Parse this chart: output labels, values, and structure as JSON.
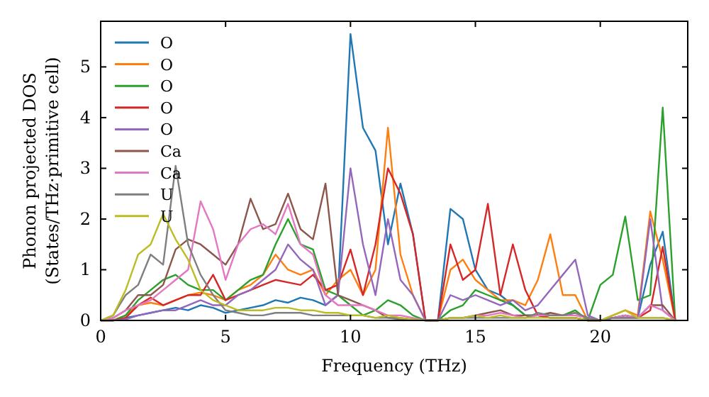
{
  "chart_data": {
    "type": "line",
    "xlabel": "Frequency (THz)",
    "ylabel": "Phonon projected DOS\n(States/THz·primitive cell)",
    "xlim": [
      0,
      23.5
    ],
    "ylim": [
      0,
      5.9
    ],
    "xticks": [
      0,
      5,
      10,
      15,
      20
    ],
    "yticks": [
      0,
      1,
      2,
      3,
      4,
      5
    ],
    "grid": false,
    "legend": "top left",
    "line_style": "solid",
    "marker": "none",
    "x": [
      0,
      0.5,
      1,
      1.5,
      2,
      2.5,
      3,
      3.5,
      4,
      4.5,
      5,
      5.5,
      6,
      6.5,
      7,
      7.5,
      8,
      8.5,
      9,
      9.5,
      10,
      10.5,
      11,
      11.5,
      12,
      12.5,
      13,
      13.5,
      14,
      14.5,
      15,
      15.5,
      16,
      16.5,
      17,
      17.5,
      18,
      18.5,
      19,
      19.5,
      20,
      20.5,
      21,
      21.5,
      22,
      22.5,
      23
    ],
    "series": [
      {
        "name": "O",
        "color": "#1f77b4",
        "values": [
          0,
          0,
          0.05,
          0.1,
          0.15,
          0.2,
          0.25,
          0.2,
          0.3,
          0.25,
          0.15,
          0.2,
          0.25,
          0.3,
          0.4,
          0.35,
          0.45,
          0.4,
          0.3,
          0.5,
          5.65,
          3.8,
          3.35,
          1.5,
          2.7,
          1.7,
          0,
          0,
          2.2,
          2.0,
          1.0,
          0.6,
          0.5,
          0.3,
          0.1,
          0.1,
          0.05,
          0.05,
          0.05,
          0,
          0,
          0.05,
          0.1,
          0.05,
          1.1,
          1.75,
          0
        ]
      },
      {
        "name": "O",
        "color": "#ff7f0e",
        "values": [
          0,
          0,
          0.1,
          0.3,
          0.35,
          0.3,
          0.4,
          0.5,
          0.55,
          0.5,
          0.4,
          0.6,
          0.7,
          0.9,
          1.3,
          1.0,
          0.9,
          1.0,
          0.5,
          0.8,
          1.0,
          0.5,
          1.0,
          3.8,
          1.3,
          0.5,
          0,
          0,
          1.0,
          1.2,
          0.8,
          0.6,
          0.4,
          0.4,
          0.3,
          0.8,
          1.7,
          0.5,
          0.5,
          0,
          0,
          0.1,
          0.2,
          0.1,
          2.15,
          1.2,
          0
        ]
      },
      {
        "name": "O",
        "color": "#2ca02c",
        "values": [
          0,
          0,
          0.1,
          0.4,
          0.6,
          0.8,
          0.9,
          0.7,
          0.6,
          0.6,
          0.4,
          0.6,
          0.8,
          0.9,
          1.5,
          2.0,
          1.5,
          1.4,
          0.6,
          0.5,
          0.3,
          0.1,
          0.2,
          0.4,
          0.3,
          0.1,
          0,
          0,
          0.2,
          0.3,
          0.6,
          0.5,
          0.4,
          0.3,
          0.1,
          0.1,
          0.1,
          0.1,
          0.2,
          0,
          0.7,
          0.9,
          2.05,
          0.4,
          0.5,
          4.2,
          0
        ]
      },
      {
        "name": "O",
        "color": "#d62728",
        "values": [
          0,
          0,
          0.05,
          0.3,
          0.45,
          0.3,
          0.4,
          0.5,
          0.5,
          0.9,
          0.4,
          0.5,
          0.6,
          0.7,
          0.8,
          0.75,
          0.7,
          0.9,
          0.6,
          0.7,
          1.4,
          0.5,
          1.5,
          3.0,
          2.5,
          1.7,
          0,
          0,
          1.5,
          0.8,
          1.0,
          2.3,
          0.5,
          1.5,
          0.6,
          0.1,
          0.05,
          0.05,
          0.05,
          0,
          0,
          0.05,
          0.05,
          0.05,
          0.2,
          1.45,
          0
        ]
      },
      {
        "name": "O",
        "color": "#9467bd",
        "values": [
          0,
          0,
          0.02,
          0.1,
          0.15,
          0.2,
          0.2,
          0.3,
          0.4,
          0.3,
          0.3,
          0.5,
          0.6,
          0.8,
          1.0,
          1.5,
          1.2,
          1.0,
          0.3,
          0.5,
          3.0,
          1.5,
          0.5,
          2.0,
          0.8,
          0.5,
          0,
          0,
          0.5,
          0.4,
          0.5,
          0.4,
          0.3,
          0.4,
          0.2,
          0.3,
          0.6,
          0.9,
          1.2,
          0.1,
          0,
          0.05,
          0.05,
          0.05,
          2.0,
          0.2,
          0
        ]
      },
      {
        "name": "Ca",
        "color": "#8c564b",
        "values": [
          0,
          0.05,
          0.2,
          0.5,
          0.5,
          0.7,
          1.4,
          1.6,
          1.5,
          1.3,
          1.1,
          1.5,
          2.4,
          1.8,
          1.9,
          2.5,
          1.8,
          1.6,
          2.7,
          0.5,
          0.4,
          0.3,
          0.2,
          0.05,
          0.05,
          0.02,
          0,
          0,
          0.05,
          0.05,
          0.1,
          0.15,
          0.2,
          0.1,
          0.1,
          0.1,
          0.15,
          0.1,
          0.15,
          0.05,
          0,
          0.05,
          0.1,
          0.05,
          0.3,
          0.3,
          0
        ]
      },
      {
        "name": "Ca",
        "color": "#e377c2",
        "values": [
          0,
          0.05,
          0.2,
          0.3,
          0.4,
          0.6,
          0.8,
          1.0,
          2.35,
          1.8,
          0.8,
          1.5,
          1.8,
          1.9,
          1.7,
          2.3,
          1.5,
          1.3,
          0.5,
          0.3,
          0.3,
          0.3,
          0.2,
          0.1,
          0.1,
          0.05,
          0,
          0,
          0.05,
          0.05,
          0.1,
          0.1,
          0.15,
          0.1,
          0.05,
          0.1,
          0.1,
          0.1,
          0.1,
          0.05,
          0,
          0.05,
          0.1,
          0.05,
          0.3,
          0.2,
          0
        ]
      },
      {
        "name": "U",
        "color": "#7f7f7f",
        "values": [
          0,
          0.1,
          0.5,
          0.7,
          1.3,
          1.1,
          3.05,
          1.5,
          0.9,
          0.5,
          0.2,
          0.15,
          0.1,
          0.1,
          0.15,
          0.15,
          0.15,
          0.1,
          0.1,
          0.1,
          0.1,
          0.1,
          0.05,
          0.05,
          0.02,
          0.02,
          0,
          0,
          0.05,
          0.05,
          0.05,
          0.05,
          0.05,
          0.05,
          0.05,
          0.15,
          0.1,
          0.1,
          0.15,
          0.05,
          0,
          0.05,
          0.05,
          0.05,
          0.05,
          0.05,
          0
        ]
      },
      {
        "name": "U",
        "color": "#bcbd22",
        "values": [
          0,
          0.1,
          0.6,
          1.3,
          1.5,
          2.1,
          1.6,
          1.2,
          0.6,
          0.4,
          0.3,
          0.2,
          0.2,
          0.2,
          0.25,
          0.25,
          0.2,
          0.2,
          0.15,
          0.15,
          0.1,
          0.1,
          0.05,
          0.1,
          0.05,
          0.02,
          0,
          0,
          0.05,
          0.05,
          0.1,
          0.05,
          0.1,
          0.05,
          0.05,
          0.05,
          0.05,
          0.05,
          0.05,
          0,
          0,
          0.1,
          0.2,
          0.05,
          0.05,
          0.05,
          0
        ]
      }
    ]
  }
}
